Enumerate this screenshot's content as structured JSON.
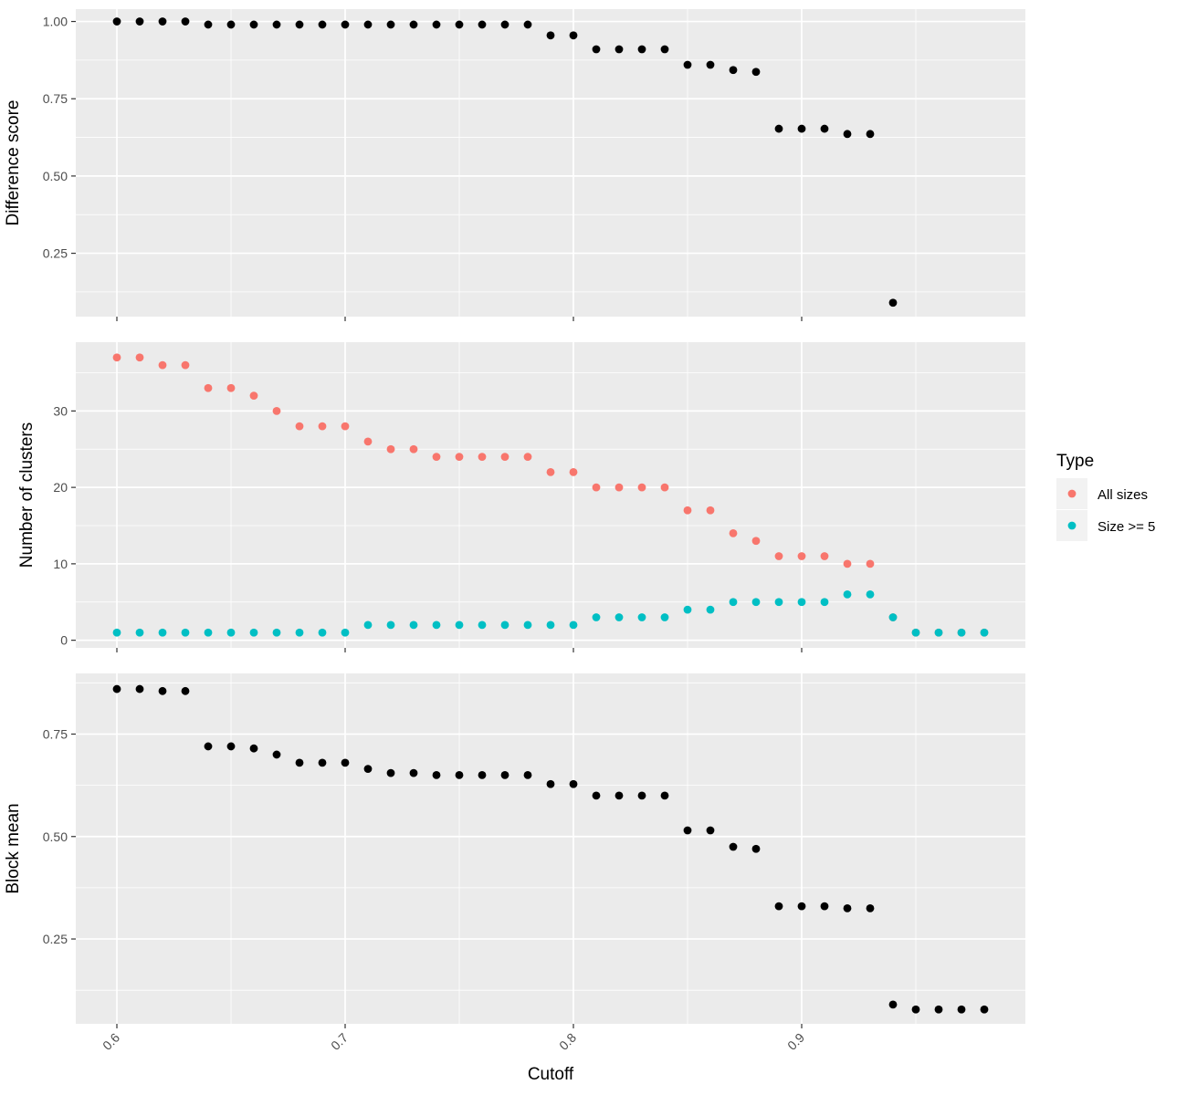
{
  "chart_data": {
    "type": "scatter",
    "layout": "three vertically stacked panels sharing x axis",
    "xlabel": "Cutoff",
    "xlim": [
      0.582,
      0.998
    ],
    "x_ticks": [
      0.6,
      0.7,
      0.8,
      0.9
    ],
    "x_tick_labels": [
      "0.6",
      "0.7",
      "0.8",
      "0.9"
    ],
    "x_tick_label_rotation": "45 degrees",
    "grid": true,
    "background": "#ebebeb",
    "legend": {
      "title": "Type",
      "placement": "right, beside middle panel",
      "entries": [
        {
          "label": "All sizes",
          "color": "#f8766d"
        },
        {
          "label": "Size >= 5",
          "color": "#00bfc4"
        }
      ]
    },
    "panels": [
      {
        "name": "difference",
        "ylabel": "Difference score",
        "ylim": [
          0.045,
          1.04
        ],
        "y_ticks": [
          0.25,
          0.5,
          0.75,
          1.0
        ],
        "y_tick_labels": [
          "0.25",
          "0.50",
          "0.75",
          "1.00"
        ],
        "x_axis_labels_shown": false,
        "series": [
          {
            "color": "#000000",
            "x": [
              0.6,
              0.61,
              0.62,
              0.63,
              0.64,
              0.65,
              0.66,
              0.67,
              0.68,
              0.69,
              0.7,
              0.71,
              0.72,
              0.73,
              0.74,
              0.75,
              0.76,
              0.77,
              0.78,
              0.79,
              0.8,
              0.81,
              0.82,
              0.83,
              0.84,
              0.85,
              0.86,
              0.87,
              0.88,
              0.89,
              0.9,
              0.91,
              0.92,
              0.93,
              0.94
            ],
            "y": [
              1.0,
              1.0,
              1.0,
              1.0,
              0.99,
              0.99,
              0.99,
              0.99,
              0.99,
              0.99,
              0.99,
              0.99,
              0.99,
              0.99,
              0.99,
              0.99,
              0.99,
              0.99,
              0.99,
              0.955,
              0.955,
              0.91,
              0.91,
              0.91,
              0.91,
              0.86,
              0.86,
              0.843,
              0.837,
              0.653,
              0.653,
              0.653,
              0.636,
              0.636,
              0.09
            ]
          }
        ]
      },
      {
        "name": "clusters",
        "ylabel": "Number of clusters",
        "ylim": [
          -1,
          39
        ],
        "y_ticks": [
          0,
          10,
          20,
          30
        ],
        "y_tick_labels": [
          "0",
          "10",
          "20",
          "30"
        ],
        "x_axis_labels_shown": false,
        "series": [
          {
            "name": "All sizes",
            "color": "#f8766d",
            "x": [
              0.6,
              0.61,
              0.62,
              0.63,
              0.64,
              0.65,
              0.66,
              0.67,
              0.68,
              0.69,
              0.7,
              0.71,
              0.72,
              0.73,
              0.74,
              0.75,
              0.76,
              0.77,
              0.78,
              0.79,
              0.8,
              0.81,
              0.82,
              0.83,
              0.84,
              0.85,
              0.86,
              0.87,
              0.88,
              0.89,
              0.9,
              0.91,
              0.92,
              0.93,
              0.94,
              0.95,
              0.96,
              0.97,
              0.98
            ],
            "y": [
              37,
              37,
              36,
              36,
              33,
              33,
              32,
              30,
              28,
              28,
              28,
              26,
              25,
              25,
              24,
              24,
              24,
              24,
              24,
              22,
              22,
              20,
              20,
              20,
              20,
              17,
              17,
              14,
              13,
              11,
              11,
              11,
              10,
              10,
              3,
              1,
              1,
              1,
              1
            ]
          },
          {
            "name": "Size >= 5",
            "color": "#00bfc4",
            "x": [
              0.6,
              0.61,
              0.62,
              0.63,
              0.64,
              0.65,
              0.66,
              0.67,
              0.68,
              0.69,
              0.7,
              0.71,
              0.72,
              0.73,
              0.74,
              0.75,
              0.76,
              0.77,
              0.78,
              0.79,
              0.8,
              0.81,
              0.82,
              0.83,
              0.84,
              0.85,
              0.86,
              0.87,
              0.88,
              0.89,
              0.9,
              0.91,
              0.92,
              0.93,
              0.94,
              0.95,
              0.96,
              0.97,
              0.98
            ],
            "y": [
              1,
              1,
              1,
              1,
              1,
              1,
              1,
              1,
              1,
              1,
              1,
              2,
              2,
              2,
              2,
              2,
              2,
              2,
              2,
              2,
              2,
              3,
              3,
              3,
              3,
              4,
              4,
              5,
              5,
              5,
              5,
              5,
              6,
              6,
              3,
              1,
              1,
              1,
              1
            ]
          }
        ]
      },
      {
        "name": "blockmean",
        "ylabel": "Block mean",
        "ylim": [
          0.043,
          0.898
        ],
        "y_ticks": [
          0.25,
          0.5,
          0.75
        ],
        "y_tick_labels": [
          "0.25",
          "0.50",
          "0.75"
        ],
        "x_axis_labels_shown": true,
        "series": [
          {
            "color": "#000000",
            "x": [
              0.6,
              0.61,
              0.62,
              0.63,
              0.64,
              0.65,
              0.66,
              0.67,
              0.68,
              0.69,
              0.7,
              0.71,
              0.72,
              0.73,
              0.74,
              0.75,
              0.76,
              0.77,
              0.78,
              0.79,
              0.8,
              0.81,
              0.82,
              0.83,
              0.84,
              0.85,
              0.86,
              0.87,
              0.88,
              0.89,
              0.9,
              0.91,
              0.92,
              0.93,
              0.94,
              0.95,
              0.96,
              0.97,
              0.98
            ],
            "y": [
              0.86,
              0.86,
              0.855,
              0.855,
              0.72,
              0.72,
              0.715,
              0.7,
              0.68,
              0.68,
              0.68,
              0.665,
              0.655,
              0.655,
              0.65,
              0.65,
              0.65,
              0.65,
              0.65,
              0.628,
              0.628,
              0.6,
              0.6,
              0.6,
              0.6,
              0.515,
              0.515,
              0.475,
              0.47,
              0.33,
              0.33,
              0.33,
              0.325,
              0.325,
              0.09,
              0.078,
              0.078,
              0.078,
              0.078
            ]
          }
        ]
      }
    ]
  }
}
